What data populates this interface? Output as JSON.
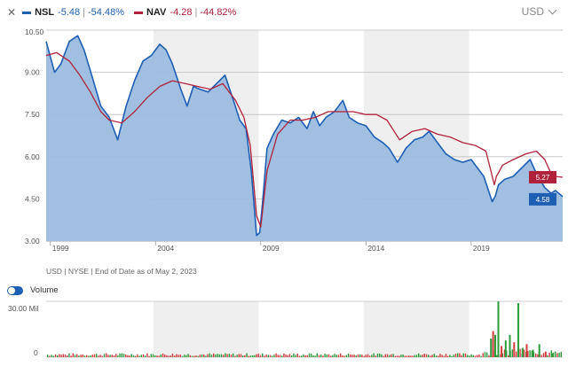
{
  "header": {
    "close_icon": "close-icon",
    "series": [
      {
        "ticker": "NSL",
        "change": "-5.48",
        "sep": "|",
        "pct": "-54.48%",
        "color": "#1f5fb3"
      },
      {
        "ticker": "NAV",
        "change": "-4.28",
        "sep": "|",
        "pct": "-44.82%",
        "color": "#b0223c"
      }
    ],
    "currency": "USD",
    "currency_icon": "chevron-down-icon"
  },
  "footnote": "USD | NYSE | End of Date as of May 2, 2023",
  "volume_toggle": {
    "label": "Volume",
    "on": true,
    "icon": "toggle-switch-icon"
  },
  "chart_data": [
    {
      "type": "area",
      "title": "",
      "xlabel": "",
      "ylabel": "",
      "xlim": [
        1998.8,
        2023.35
      ],
      "ylim": [
        3.0,
        10.5
      ],
      "y_ticks": [
        "10.50",
        "9.00",
        "7.50",
        "6.00",
        "4.50",
        "3.00"
      ],
      "x_ticks": [
        "1999",
        "2004",
        "2009",
        "2014",
        "2019"
      ],
      "grid": true,
      "shaded_year_bands": [
        [
          2003.9,
          2008.9
        ],
        [
          2013.9,
          2018.9
        ]
      ],
      "series": [
        {
          "name": "NSL",
          "color": "#1f5fb3",
          "fill": "#9bbcdf",
          "x": [
            1998.8,
            1999.2,
            1999.5,
            1999.9,
            2000.3,
            2000.6,
            2001.0,
            2001.4,
            2001.8,
            2002.2,
            2002.6,
            2003.0,
            2003.4,
            2003.8,
            2004.2,
            2004.5,
            2004.8,
            2005.2,
            2005.5,
            2005.8,
            2006.1,
            2006.5,
            2006.9,
            2007.3,
            2007.7,
            2008.0,
            2008.3,
            2008.55,
            2008.8,
            2008.95,
            2009.1,
            2009.3,
            2009.6,
            2010.0,
            2010.4,
            2010.8,
            2011.2,
            2011.5,
            2011.8,
            2012.1,
            2012.5,
            2012.9,
            2013.2,
            2013.6,
            2014.0,
            2014.4,
            2014.8,
            2015.1,
            2015.5,
            2015.9,
            2016.3,
            2016.7,
            2017.0,
            2017.4,
            2017.8,
            2018.2,
            2018.6,
            2019.0,
            2019.3,
            2019.6,
            2020.0,
            2020.15,
            2020.3,
            2020.6,
            2021.0,
            2021.4,
            2021.8,
            2022.1,
            2022.5,
            2022.8,
            2023.0,
            2023.35
          ],
          "values": [
            10.1,
            9.0,
            9.3,
            10.1,
            10.3,
            9.8,
            8.8,
            7.8,
            7.4,
            6.6,
            7.8,
            8.7,
            9.4,
            9.6,
            10.0,
            9.8,
            9.3,
            8.4,
            7.8,
            8.5,
            8.4,
            8.3,
            8.6,
            8.9,
            8.0,
            7.3,
            7.0,
            5.5,
            3.2,
            3.3,
            4.5,
            6.3,
            6.8,
            7.3,
            7.2,
            7.4,
            7.0,
            7.6,
            7.1,
            7.4,
            7.6,
            8.0,
            7.4,
            7.2,
            7.1,
            6.7,
            6.5,
            6.3,
            5.8,
            6.3,
            6.6,
            6.7,
            6.9,
            6.5,
            6.1,
            5.9,
            5.8,
            5.9,
            5.6,
            5.3,
            4.4,
            4.6,
            5.0,
            5.2,
            5.3,
            5.6,
            5.9,
            5.4,
            4.9,
            4.7,
            4.8,
            4.58
          ],
          "last_label": "4.58"
        },
        {
          "name": "NAV",
          "color": "#b0223c",
          "x": [
            1998.8,
            1999.3,
            1999.9,
            2000.4,
            2000.9,
            2001.4,
            2001.8,
            2002.4,
            2003.0,
            2003.6,
            2004.2,
            2004.8,
            2005.4,
            2006.0,
            2006.6,
            2007.2,
            2007.8,
            2008.2,
            2008.5,
            2008.8,
            2009.0,
            2009.3,
            2009.8,
            2010.4,
            2011.0,
            2011.6,
            2012.2,
            2012.8,
            2013.4,
            2014.0,
            2014.5,
            2015.0,
            2015.6,
            2016.2,
            2016.8,
            2017.4,
            2018.0,
            2018.6,
            2019.2,
            2019.7,
            2020.1,
            2020.2,
            2020.5,
            2021.0,
            2021.6,
            2022.1,
            2022.5,
            2022.8,
            2023.0,
            2023.35
          ],
          "values": [
            9.6,
            9.7,
            9.4,
            8.9,
            8.3,
            7.6,
            7.3,
            7.2,
            7.6,
            8.1,
            8.5,
            8.7,
            8.6,
            8.5,
            8.4,
            8.6,
            8.0,
            7.4,
            6.4,
            3.9,
            3.5,
            5.5,
            6.8,
            7.3,
            7.3,
            7.4,
            7.6,
            7.6,
            7.6,
            7.5,
            7.5,
            7.3,
            6.6,
            6.9,
            7.0,
            6.8,
            6.7,
            6.5,
            6.4,
            6.2,
            5.0,
            5.3,
            5.7,
            5.9,
            6.1,
            6.2,
            5.9,
            5.4,
            5.3,
            5.27
          ],
          "last_label": "5.27"
        }
      ]
    },
    {
      "type": "bar",
      "title": "",
      "xlabel": "",
      "ylabel": "",
      "ylim": [
        0,
        30
      ],
      "y_ticks": [
        "30.00 Mil",
        "0"
      ],
      "units": "Mil",
      "colors": {
        "up": "#2d9b3b",
        "down": "#d23b3b"
      },
      "series": [
        {
          "name": "Volume",
          "x": [
            2019.9,
            2020.0,
            2020.1,
            2020.25,
            2020.4,
            2020.6,
            2020.8,
            2021.0,
            2021.2,
            2021.4,
            2021.6,
            2021.9,
            2022.2,
            2022.5,
            2022.8
          ],
          "values": [
            10,
            14,
            12,
            30,
            6,
            9,
            12,
            8,
            29,
            5,
            7,
            4,
            7,
            3,
            2
          ]
        }
      ]
    }
  ]
}
